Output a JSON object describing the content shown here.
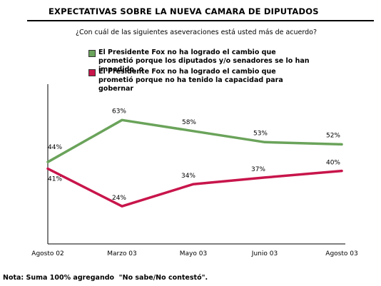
{
  "title": "EXPECTATIVAS SOBRE LA NUEVA CAMARA DE DIPUTADOS",
  "subtitle": "¿Con cuál de las siguientes aseveraciones está usted más de acuerdo?",
  "note": "Nota: Suma 100% agregando  \"No sabe/No contestó\".",
  "chart_data": {
    "type": "line",
    "x": [
      "Agosto 02",
      "Marzo 03",
      "Mayo 03",
      "Junio 03",
      "Agosto 03"
    ],
    "ylim": [
      0,
      100
    ],
    "grid": false,
    "legend_position": "top",
    "series": [
      {
        "name": "El Presidente Fox no ha logrado el cambio que prometió porque los diputados y/o senadores se lo han impedido, o",
        "values": [
          44,
          63,
          58,
          53,
          52
        ],
        "labels": [
          "44%",
          "63%",
          "58%",
          "53%",
          "52%"
        ],
        "color": "#6aa35a"
      },
      {
        "name": "El Presidente Fox no ha logrado el cambio que prometió porque no ha tenido la capacidad para gobernar",
        "values": [
          41,
          24,
          34,
          37,
          40
        ],
        "labels": [
          "41%",
          "24%",
          "34%",
          "37%",
          "40%"
        ],
        "color": "#c8154b"
      }
    ]
  }
}
